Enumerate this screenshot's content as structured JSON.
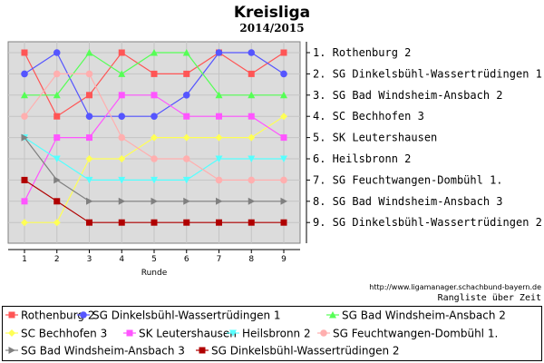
{
  "chart_data": {
    "type": "line",
    "title": "Kreisliga",
    "subtitle": "2014/2015",
    "xlabel": "Runde",
    "x": [
      1,
      2,
      3,
      4,
      5,
      6,
      7,
      8,
      9
    ],
    "y_inverted": true,
    "ylim": [
      1,
      9
    ],
    "y_tick_labels": [
      "1. Rothenburg 2",
      "2. SG Dinkelsbühl-Wassertrüdingen 1",
      "3. SG Bad Windsheim-Ansbach 2",
      "4. SC Bechhofen 3",
      "5. SK Leutershausen",
      "6. Heilsbronn 2",
      "7. SG Feuchtwangen-Dombühl 1.",
      "8. SG Bad Windsheim-Ansbach 3",
      "9. SG Dinkelsbühl-Wassertrüdingen 2"
    ],
    "grid": true,
    "legend_position": "bottom",
    "footer_url": "http://www.ligamanager.schachbund-bayern.de",
    "footer_caption": "Rangliste über Zeit",
    "series": [
      {
        "name": "Rothenburg 2",
        "color": "#ff5555",
        "marker": "square",
        "values": [
          1,
          4,
          3,
          1,
          2,
          2,
          1,
          2,
          1
        ]
      },
      {
        "name": "SG Dinkelsbühl-Wassertrüdingen 1",
        "color": "#5555ff",
        "marker": "circle",
        "values": [
          2,
          1,
          4,
          4,
          4,
          3,
          1,
          1,
          2
        ]
      },
      {
        "name": "SG Bad Windsheim-Ansbach 2",
        "color": "#55ff55",
        "marker": "triangle-up",
        "values": [
          3,
          3,
          1,
          2,
          1,
          1,
          3,
          3,
          3
        ]
      },
      {
        "name": "SC Bechhofen 3",
        "color": "#ffff55",
        "marker": "diamond",
        "values": [
          9,
          9,
          6,
          6,
          5,
          5,
          5,
          5,
          4
        ]
      },
      {
        "name": "SK Leutershausen",
        "color": "#ff55ff",
        "marker": "square",
        "values": [
          8,
          5,
          5,
          3,
          3,
          4,
          4,
          4,
          5
        ]
      },
      {
        "name": "Heilsbronn 2",
        "color": "#55ffff",
        "marker": "triangle-down",
        "values": [
          5,
          6,
          7,
          7,
          7,
          7,
          6,
          6,
          6
        ]
      },
      {
        "name": "SG Feuchtwangen-Dombühl 1.",
        "color": "#ffafaf",
        "marker": "circle",
        "values": [
          4,
          2,
          2,
          5,
          6,
          6,
          7,
          7,
          7
        ]
      },
      {
        "name": "SG Bad Windsheim-Ansbach 3",
        "color": "#808080",
        "marker": "triangle-right",
        "values": [
          5,
          7,
          8,
          8,
          8,
          8,
          8,
          8,
          8
        ]
      },
      {
        "name": "SG Dinkelsbühl-Wassertrüdingen 2",
        "color": "#b00000",
        "marker": "square",
        "values": [
          7,
          8,
          9,
          9,
          9,
          9,
          9,
          9,
          9
        ]
      }
    ]
  }
}
